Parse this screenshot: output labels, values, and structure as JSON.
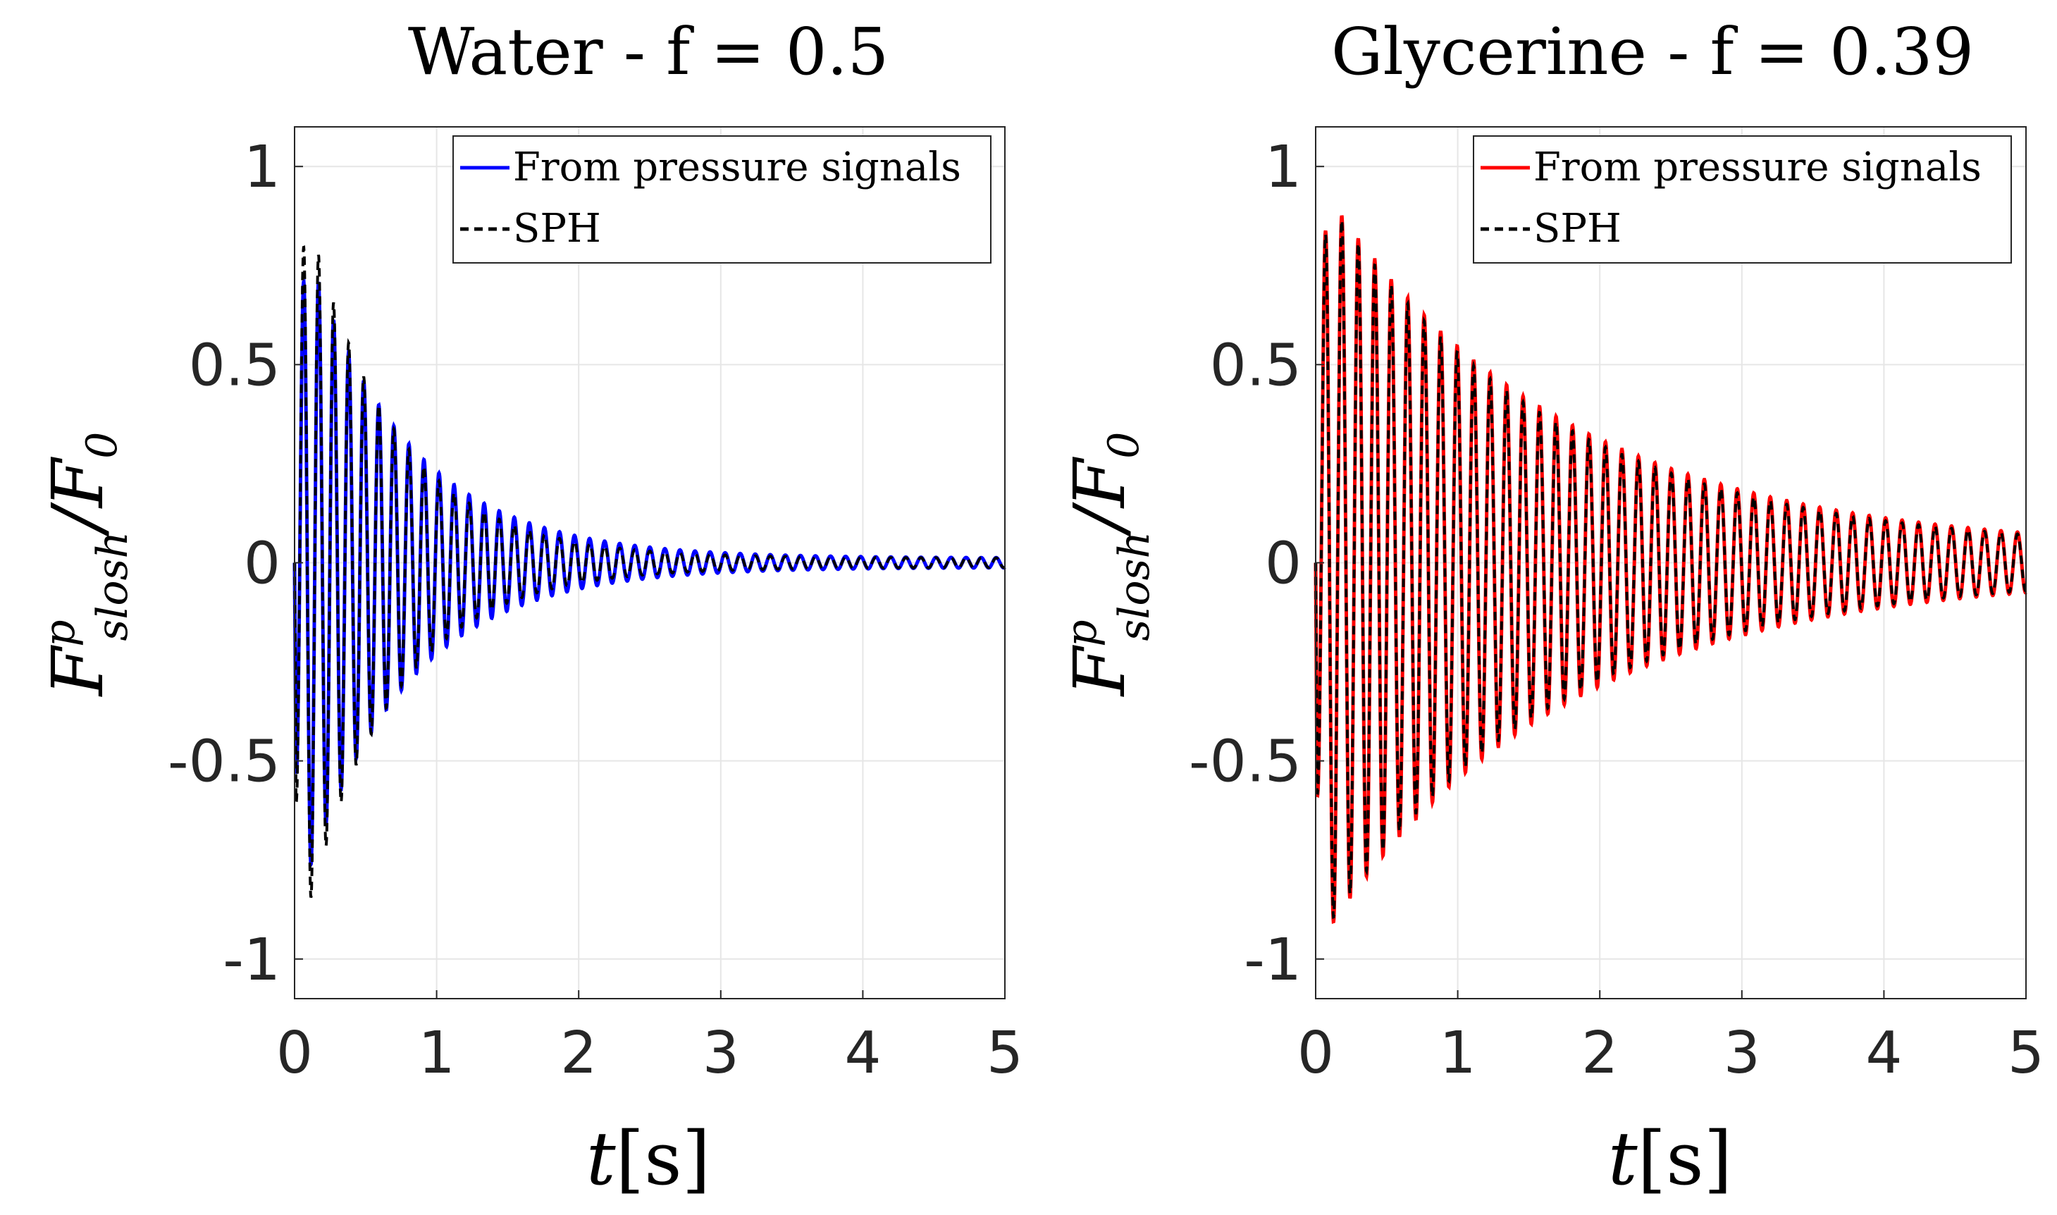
{
  "chart_data": [
    {
      "type": "line",
      "title": "Water - f = 0.5",
      "xlabel": "t[s]",
      "ylabel": "F^p_slosh/F_0",
      "ylabel_parts": {
        "base": "F",
        "sup": "p",
        "sub": "slosh",
        "rest": "/F",
        "rest_sub": "0"
      },
      "xlabel_parts": {
        "var": "t",
        "unit": "[s]"
      },
      "xlim": [
        0,
        5
      ],
      "ylim": [
        -1.1,
        1.1
      ],
      "xticks": [
        0,
        1,
        2,
        3,
        4,
        5
      ],
      "xtick_labels": [
        "0",
        "1",
        "2",
        "3",
        "4",
        "5"
      ],
      "yticks": [
        -1,
        -0.5,
        0,
        0.5,
        1
      ],
      "ytick_labels": [
        "-1",
        "-0.5",
        "0",
        "0.5",
        "1"
      ],
      "grid": true,
      "legend_position": "top-right",
      "series": [
        {
          "name": "From pressure signals",
          "color": "#0000ff",
          "style": "solid",
          "amp_early": 0.88,
          "amp_end": 0.012,
          "period": 0.106,
          "tau": 0.72,
          "onset_dip": -0.52
        },
        {
          "name": "SPH",
          "color": "#000000",
          "style": "dashed",
          "amp_early": 1.0,
          "amp_end": 0.012,
          "period": 0.106,
          "tau": 0.62,
          "onset_dip": -0.45
        }
      ]
    },
    {
      "type": "line",
      "title": "Glycerine - f = 0.39",
      "xlabel": "t[s]",
      "ylabel": "F^p_slosh/F_0",
      "ylabel_parts": {
        "base": "F",
        "sup": "p",
        "sub": "slosh",
        "rest": "/F",
        "rest_sub": "0"
      },
      "xlabel_parts": {
        "var": "t",
        "unit": "[s]"
      },
      "xlim": [
        0,
        5
      ],
      "ylim": [
        -1.1,
        1.1
      ],
      "xticks": [
        0,
        1,
        2,
        3,
        4,
        5
      ],
      "xtick_labels": [
        "0",
        "1",
        "2",
        "3",
        "4",
        "5"
      ],
      "yticks": [
        -1,
        -0.5,
        0,
        0.5,
        1
      ],
      "ytick_labels": [
        "-1",
        "-0.5",
        "0",
        "0.5",
        "1"
      ],
      "grid": true,
      "legend_position": "top-right",
      "series": [
        {
          "name": "From pressure signals",
          "color": "#ff0000",
          "style": "solid",
          "amp_early": 0.97,
          "amp_end": 0.03,
          "period": 0.116,
          "tau": 1.65,
          "onset_dip": -0.58
        },
        {
          "name": "SPH",
          "color": "#000000",
          "style": "dashed",
          "amp_early": 0.96,
          "amp_end": 0.03,
          "period": 0.116,
          "tau": 1.6,
          "onset_dip": -0.5
        }
      ]
    }
  ]
}
